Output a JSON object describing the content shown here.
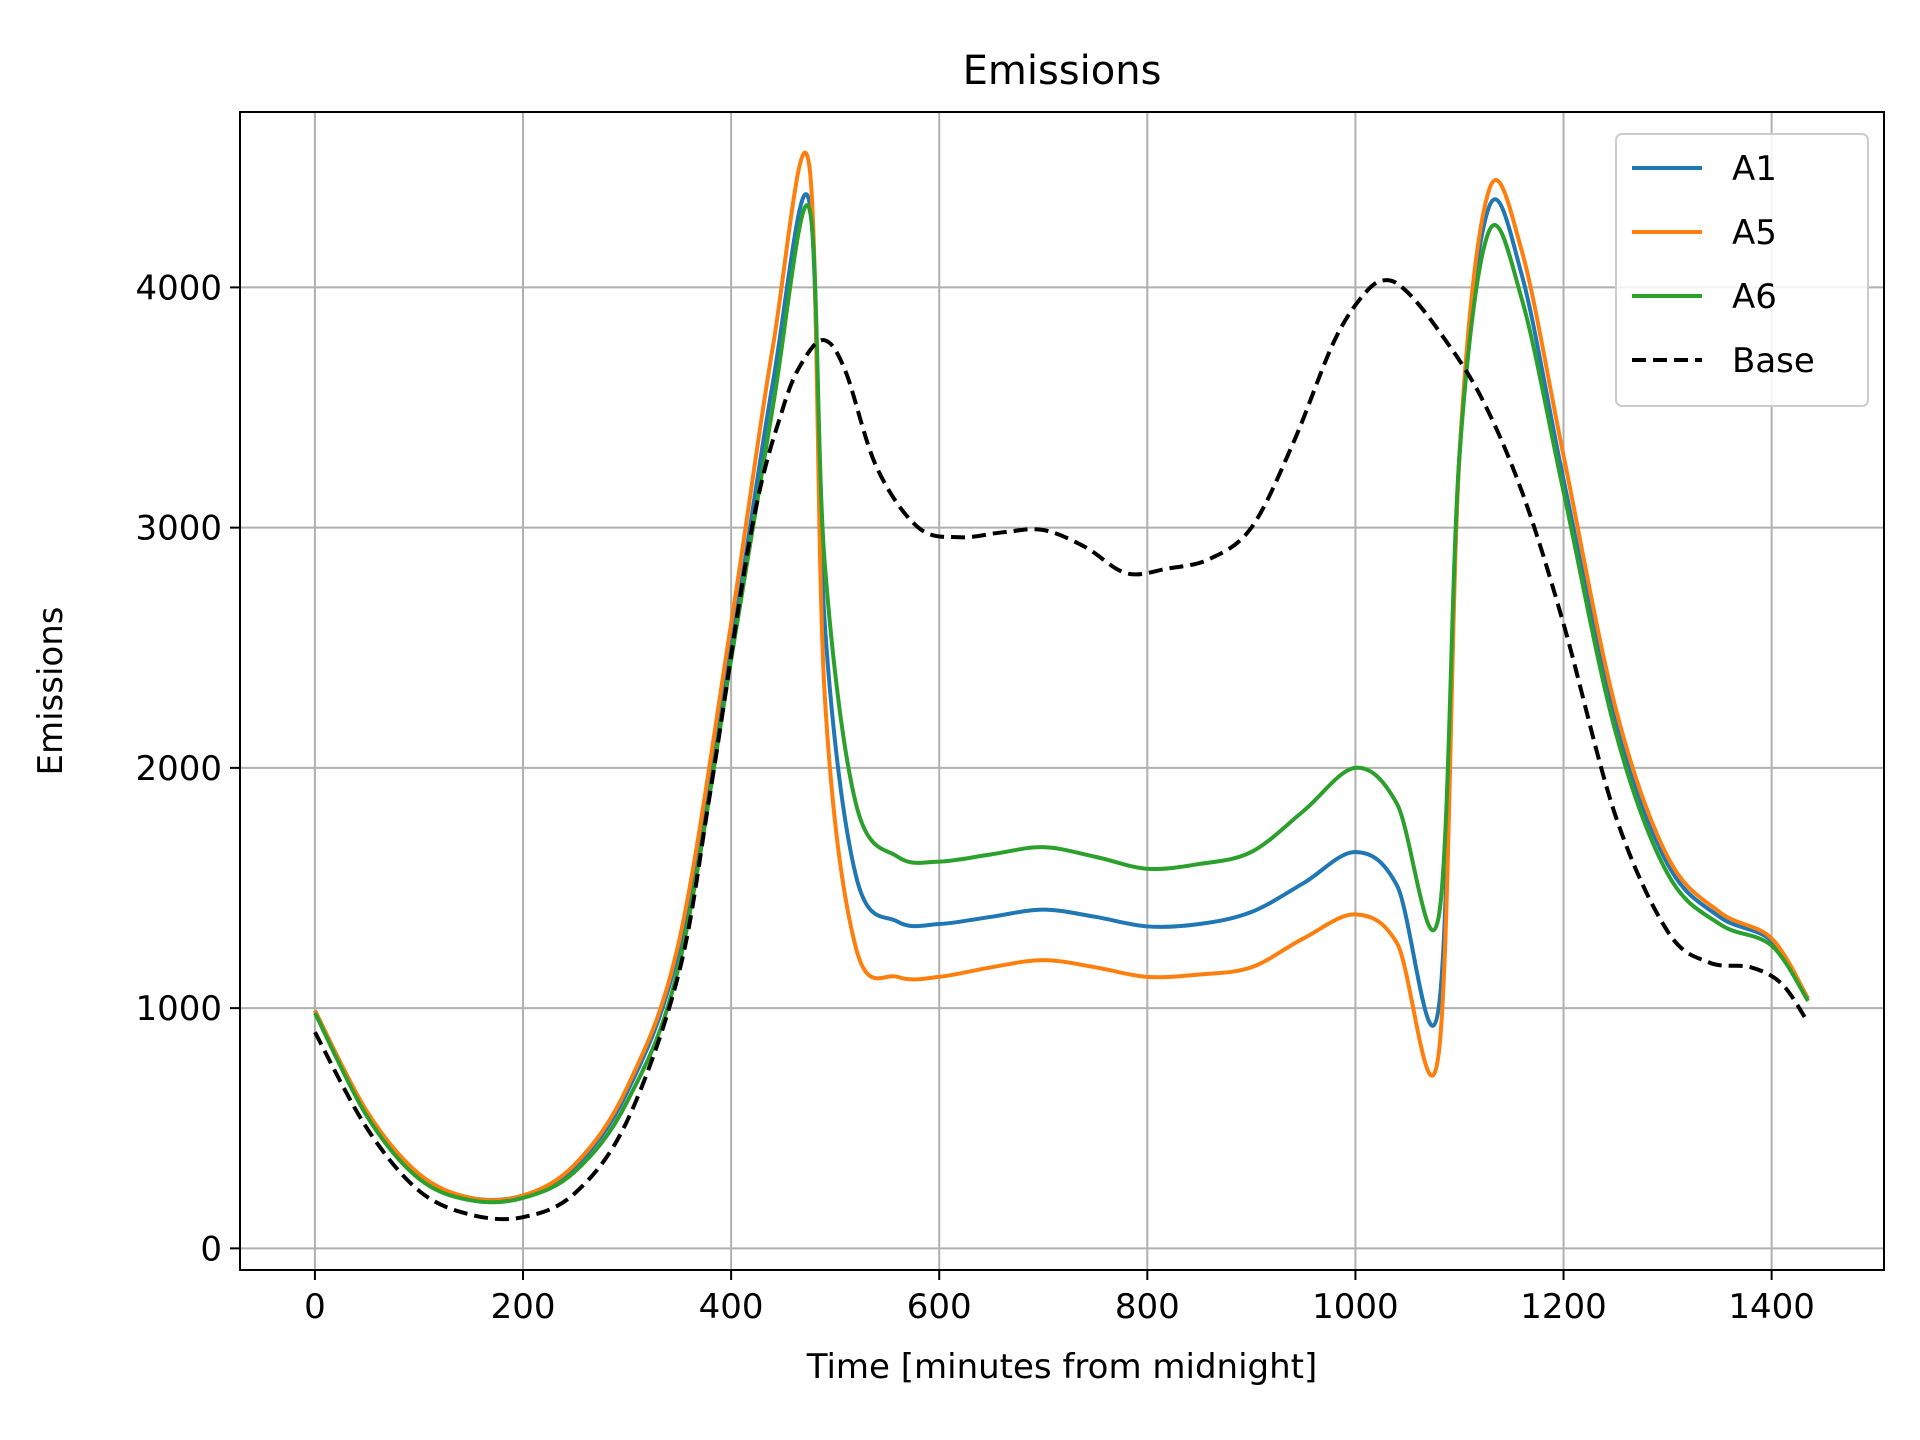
{
  "chart_data": {
    "type": "line",
    "title": "Emissions",
    "xlabel": "Time [minutes from midnight]",
    "ylabel": "Emissions",
    "xlim": [
      -72,
      1508
    ],
    "ylim": [
      -90,
      4730
    ],
    "xticks": [
      0,
      200,
      400,
      600,
      800,
      1000,
      1200,
      1400
    ],
    "yticks": [
      0,
      1000,
      2000,
      3000,
      4000
    ],
    "grid": true,
    "legend_position": "top-right",
    "series": [
      {
        "name": "A1",
        "color": "#1f77b4",
        "style": "solid",
        "x": [
          0,
          50,
          100,
          150,
          200,
          250,
          300,
          350,
          400,
          440,
          475,
          490,
          520,
          560,
          600,
          650,
          700,
          750,
          800,
          850,
          900,
          950,
          1000,
          1040,
          1080,
          1100,
          1128,
          1160,
          1200,
          1250,
          1300,
          1350,
          1400,
          1435
        ],
        "y": [
          990,
          560,
          300,
          210,
          220,
          340,
          650,
          1250,
          2500,
          3600,
          4360,
          2600,
          1550,
          1360,
          1350,
          1380,
          1410,
          1380,
          1340,
          1350,
          1400,
          1520,
          1650,
          1510,
          1000,
          3300,
          4330,
          4050,
          3200,
          2200,
          1600,
          1380,
          1280,
          1040
        ]
      },
      {
        "name": "A5",
        "color": "#ff7f0e",
        "style": "solid",
        "x": [
          0,
          50,
          100,
          150,
          200,
          250,
          300,
          350,
          400,
          440,
          475,
          490,
          520,
          560,
          600,
          650,
          700,
          750,
          800,
          850,
          900,
          950,
          1000,
          1040,
          1080,
          1100,
          1128,
          1160,
          1200,
          1250,
          1300,
          1350,
          1400,
          1435
        ],
        "y": [
          990,
          570,
          310,
          210,
          220,
          350,
          670,
          1280,
          2600,
          3750,
          4510,
          2300,
          1250,
          1130,
          1130,
          1170,
          1200,
          1170,
          1130,
          1140,
          1170,
          1290,
          1390,
          1270,
          810,
          3300,
          4400,
          4150,
          3300,
          2250,
          1630,
          1400,
          1290,
          1040
        ]
      },
      {
        "name": "A6",
        "color": "#2ca02c",
        "style": "solid",
        "x": [
          0,
          50,
          100,
          150,
          200,
          250,
          300,
          350,
          400,
          440,
          475,
          490,
          520,
          560,
          600,
          650,
          700,
          750,
          800,
          850,
          900,
          950,
          1000,
          1040,
          1080,
          1100,
          1128,
          1160,
          1200,
          1250,
          1300,
          1350,
          1400,
          1435
        ],
        "y": [
          980,
          550,
          290,
          200,
          210,
          320,
          610,
          1180,
          2450,
          3500,
          4330,
          2850,
          1850,
          1630,
          1610,
          1640,
          1670,
          1630,
          1580,
          1600,
          1650,
          1820,
          2000,
          1850,
          1380,
          3300,
          4230,
          3950,
          3150,
          2150,
          1560,
          1350,
          1260,
          1030
        ]
      },
      {
        "name": "Base",
        "color": "#000000",
        "style": "dashed",
        "x": [
          0,
          50,
          100,
          150,
          200,
          250,
          300,
          350,
          380,
          420,
          450,
          470,
          490,
          510,
          540,
          580,
          620,
          660,
          700,
          740,
          780,
          820,
          860,
          900,
          940,
          980,
          1010,
          1030,
          1050,
          1080,
          1120,
          1160,
          1200,
          1250,
          1300,
          1340,
          1380,
          1410,
          1435
        ],
        "y": [
          900,
          500,
          240,
          140,
          130,
          230,
          530,
          1150,
          1900,
          3000,
          3500,
          3700,
          3780,
          3650,
          3250,
          3000,
          2960,
          2980,
          2990,
          2920,
          2810,
          2830,
          2870,
          3000,
          3350,
          3780,
          3980,
          4030,
          3980,
          3820,
          3550,
          3150,
          2600,
          1800,
          1320,
          1190,
          1170,
          1100,
          940
        ]
      }
    ]
  }
}
